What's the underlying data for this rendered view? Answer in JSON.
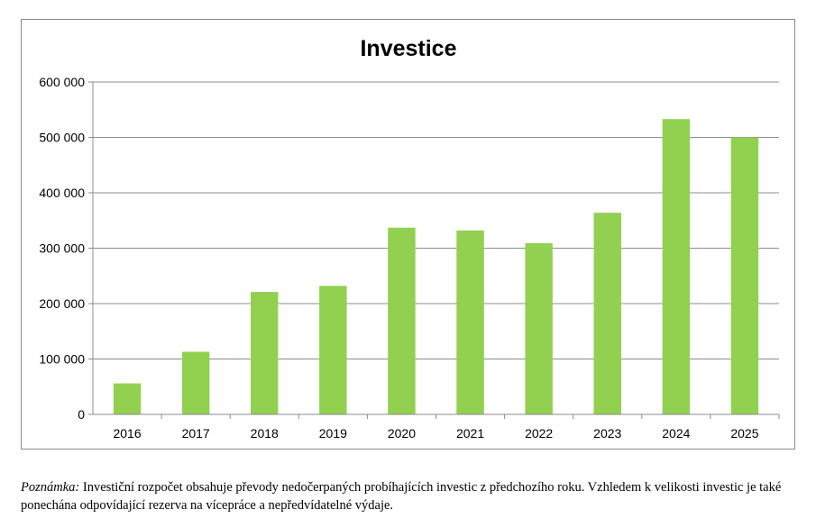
{
  "chart_data": {
    "type": "bar",
    "title": "Investice",
    "categories": [
      "2016",
      "2017",
      "2018",
      "2019",
      "2020",
      "2021",
      "2022",
      "2023",
      "2024",
      "2025"
    ],
    "values": [
      56000,
      113000,
      221000,
      232000,
      337000,
      332000,
      309000,
      364000,
      533000,
      500000
    ],
    "ylim": [
      0,
      600000
    ],
    "yticks": [
      0,
      100000,
      200000,
      300000,
      400000,
      500000,
      600000
    ],
    "ytick_labels": [
      "0",
      "100 000",
      "200 000",
      "300 000",
      "400 000",
      "500 000",
      "600 000"
    ],
    "xlabel": "",
    "ylabel": "",
    "grid": true,
    "bar_color": "#92d050"
  },
  "note": {
    "label": "Poznámka:",
    "text": " Investiční rozpočet obsahuje převody nedočerpaných probíhajících investic z předchozího roku. Vzhledem k velikosti investic je také ponechána odpovídající rezerva na vícepráce a nepředvídatelné výdaje."
  }
}
